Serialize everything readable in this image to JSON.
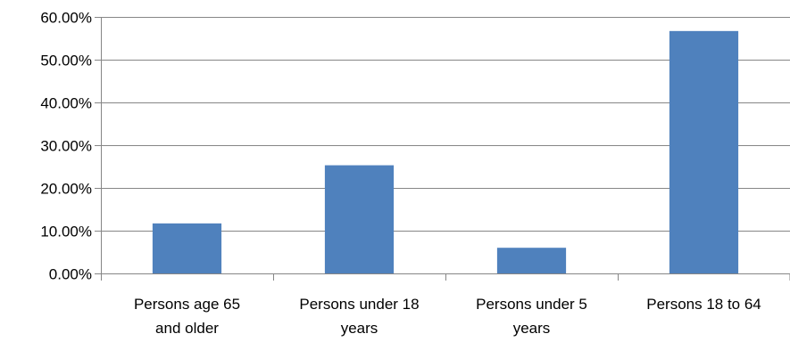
{
  "chart_data": {
    "type": "bar",
    "title": "",
    "xlabel": "",
    "ylabel": "",
    "categories": [
      [
        "Persons age 65",
        "and older"
      ],
      [
        "Persons under 18",
        "years"
      ],
      [
        "Persons under 5",
        "years"
      ],
      [
        "Persons 18 to 64"
      ]
    ],
    "values": [
      11.7,
      25.3,
      6.0,
      56.7
    ],
    "ylim": [
      0,
      60
    ],
    "yticks": [
      0,
      10,
      20,
      30,
      40,
      50,
      60
    ],
    "ytick_labels": [
      "0.00%",
      "10.00%",
      "20.00%",
      "30.00%",
      "40.00%",
      "50.00%",
      "60.00%"
    ],
    "bar_color": "#4F81BD",
    "grid": true,
    "legend": "none"
  }
}
